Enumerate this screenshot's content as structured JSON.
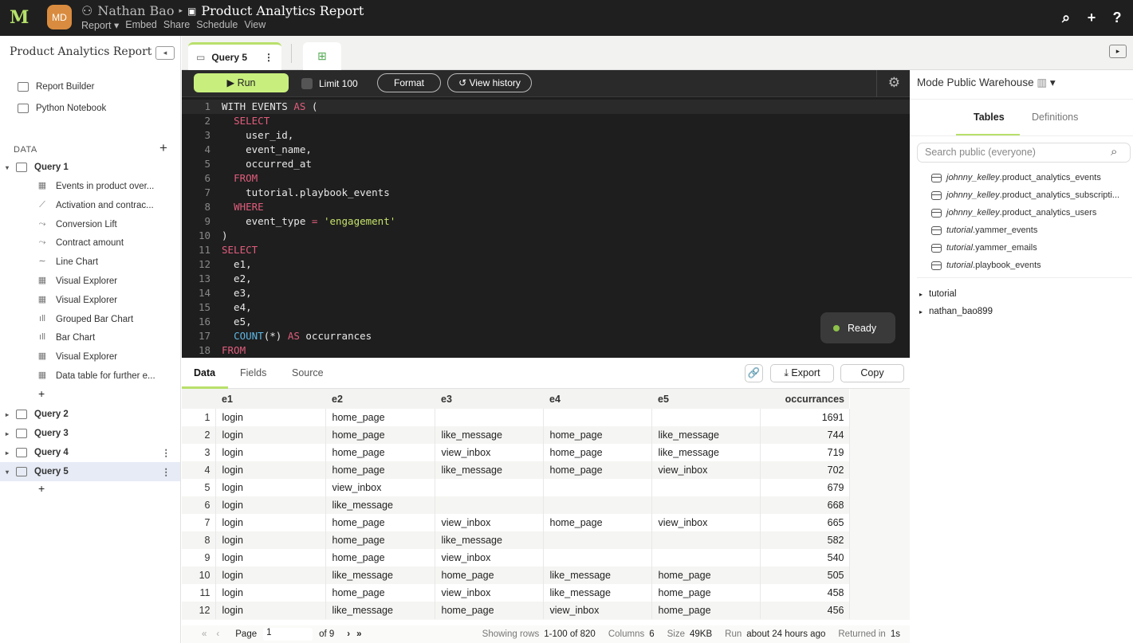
{
  "topbar": {
    "logo": "M",
    "avatar": "MD",
    "owner": "Nathan Bao",
    "report_title": "Product Analytics Report",
    "menu": [
      "Report ▾",
      "Embed",
      "Share",
      "Schedule",
      "View"
    ]
  },
  "sidebar": {
    "title": "Product Analytics Report",
    "links": [
      "Report Builder",
      "Python Notebook"
    ],
    "data_label": "DATA",
    "query1": {
      "label": "Query 1",
      "charts": [
        "Events in product over...",
        "Activation and contrac...",
        "Conversion Lift",
        "Contract amount",
        "Line Chart",
        "Visual Explorer",
        "Visual Explorer",
        "Grouped Bar Chart",
        "Bar Chart",
        "Visual Explorer",
        "Data table for further e..."
      ]
    },
    "queries": [
      "Query 2",
      "Query 3",
      "Query 4",
      "Query 5"
    ],
    "add": "+"
  },
  "tabs": {
    "active": "Query 5"
  },
  "toolbar": {
    "run": "▶  Run",
    "limit": "Limit 100",
    "format": "Format",
    "history": "View history"
  },
  "code": [
    [
      [
        "WITH EVENTS ",
        "id"
      ],
      [
        "AS",
        "kw"
      ],
      [
        " (",
        "id"
      ]
    ],
    [
      [
        "  ",
        "id"
      ],
      [
        "SELECT",
        "kw"
      ]
    ],
    [
      [
        "    user_id,",
        "id"
      ]
    ],
    [
      [
        "    event_name,",
        "id"
      ]
    ],
    [
      [
        "    occurred_at",
        "id"
      ]
    ],
    [
      [
        "  ",
        "id"
      ],
      [
        "FROM",
        "kw"
      ]
    ],
    [
      [
        "    tutorial.playbook_events",
        "id"
      ]
    ],
    [
      [
        "  ",
        "id"
      ],
      [
        "WHERE",
        "kw"
      ]
    ],
    [
      [
        "    event_type ",
        "id"
      ],
      [
        "=",
        "op"
      ],
      [
        " ",
        "id"
      ],
      [
        "'engagement'",
        "str"
      ]
    ],
    [
      [
        ")",
        "id"
      ]
    ],
    [
      [
        "SELECT",
        "kw"
      ]
    ],
    [
      [
        "  e1,",
        "id"
      ]
    ],
    [
      [
        "  e2,",
        "id"
      ]
    ],
    [
      [
        "  e3,",
        "id"
      ]
    ],
    [
      [
        "  e4,",
        "id"
      ]
    ],
    [
      [
        "  e5,",
        "id"
      ]
    ],
    [
      [
        "  ",
        "id"
      ],
      [
        "COUNT",
        "fn"
      ],
      [
        "(*) ",
        "id"
      ],
      [
        "AS",
        "kw"
      ],
      [
        " occurrances",
        "id"
      ]
    ],
    [
      [
        "FROM",
        "kw"
      ]
    ]
  ],
  "status": "Ready",
  "results": {
    "tabs": [
      "Data",
      "Fields",
      "Source"
    ],
    "export": "Export",
    "copy": "Copy",
    "columns": [
      "e1",
      "e2",
      "e3",
      "e4",
      "e5",
      "occurrances"
    ],
    "rows": [
      [
        "login",
        "home_page",
        "",
        "",
        "",
        "1691"
      ],
      [
        "login",
        "home_page",
        "like_message",
        "home_page",
        "like_message",
        "744"
      ],
      [
        "login",
        "home_page",
        "view_inbox",
        "home_page",
        "like_message",
        "719"
      ],
      [
        "login",
        "home_page",
        "like_message",
        "home_page",
        "view_inbox",
        "702"
      ],
      [
        "login",
        "view_inbox",
        "",
        "",
        "",
        "679"
      ],
      [
        "login",
        "like_message",
        "",
        "",
        "",
        "668"
      ],
      [
        "login",
        "home_page",
        "view_inbox",
        "home_page",
        "view_inbox",
        "665"
      ],
      [
        "login",
        "home_page",
        "like_message",
        "",
        "",
        "582"
      ],
      [
        "login",
        "home_page",
        "view_inbox",
        "",
        "",
        "540"
      ],
      [
        "login",
        "like_message",
        "home_page",
        "like_message",
        "home_page",
        "505"
      ],
      [
        "login",
        "home_page",
        "view_inbox",
        "like_message",
        "home_page",
        "458"
      ],
      [
        "login",
        "like_message",
        "home_page",
        "view_inbox",
        "home_page",
        "456"
      ]
    ]
  },
  "footer": {
    "page_label": "Page",
    "page": "1",
    "of": "of 9",
    "showing_label": "Showing rows",
    "showing": "1-100 of 820",
    "columns_label": "Columns",
    "columns": "6",
    "size_label": "Size",
    "size": "49KB",
    "run_label": "Run",
    "run": "about 24 hours ago",
    "returned_label": "Returned in",
    "returned": "1s"
  },
  "rpanel": {
    "warehouse": "Mode Public Warehouse",
    "tabs": [
      "Tables",
      "Definitions"
    ],
    "search_placeholder": "Search public (everyone)",
    "tables": [
      {
        "schema": "johnny_kelley",
        "name": ".product_analytics_events"
      },
      {
        "schema": "johnny_kelley",
        "name": ".product_analytics_subscripti..."
      },
      {
        "schema": "johnny_kelley",
        "name": ".product_analytics_users"
      },
      {
        "schema": "tutorial",
        "name": ".yammer_events"
      },
      {
        "schema": "tutorial",
        "name": ".yammer_emails"
      },
      {
        "schema": "tutorial",
        "name": ".playbook_events"
      }
    ],
    "schemas": [
      "tutorial",
      "nathan_bao899"
    ]
  },
  "colors": {
    "accent": "#c8ef7e",
    "topbar": "#1f1f1f",
    "keyword": "#e05d7c",
    "string": "#c5e26a"
  }
}
